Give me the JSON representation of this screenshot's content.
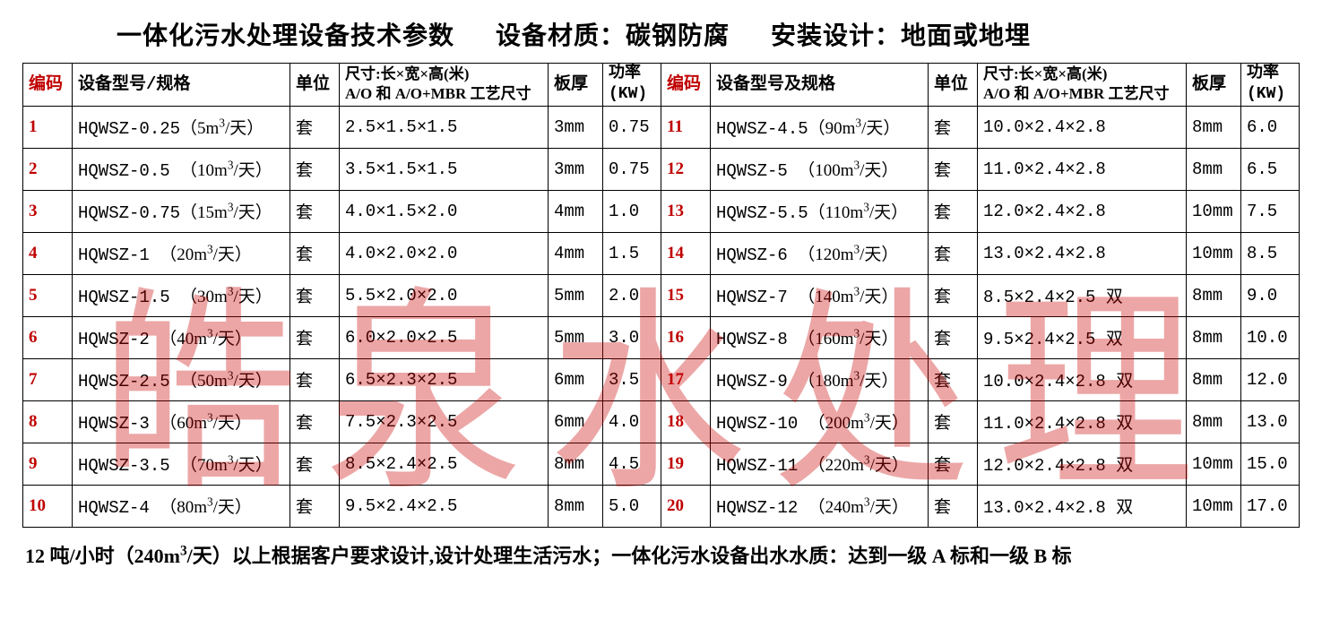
{
  "title_parts": [
    "一体化污水处理设备技术参数",
    "设备材质：碳钢防腐",
    "安装设计：地面或地埋"
  ],
  "watermark": "皓泉水处理",
  "headers": {
    "code": "编码",
    "model1": "设备型号/规格",
    "model2": "设备型号及规格",
    "unit": "单位",
    "dim_l1": "尺寸:长×宽×高(米)",
    "dim_l2": "A/O 和 A/O+MBR 工艺尺寸",
    "thick": "板厚",
    "pwr_l1": "功率",
    "pwr_l2": "(KW)"
  },
  "colors": {
    "code": "#c00000",
    "border": "#000000",
    "text": "#000000",
    "watermark": "rgba(200,0,0,0.35)",
    "bg": "#ffffff"
  },
  "font_sizes": {
    "header": 28,
    "cell": 19,
    "footer": 22,
    "watermark": 220
  },
  "rows_left": [
    {
      "code": "1",
      "model": "HQWSZ-0.25",
      "cap": "5",
      "unit": "套",
      "dim": "2.5×1.5×1.5",
      "thick": "3mm",
      "pwr": "0.75"
    },
    {
      "code": "2",
      "model": "HQWSZ-0.5",
      "cap": "10",
      "unit": "套",
      "dim": "3.5×1.5×1.5",
      "thick": "3mm",
      "pwr": "0.75"
    },
    {
      "code": "3",
      "model": "HQWSZ-0.75",
      "cap": "15",
      "unit": "套",
      "dim": "4.0×1.5×2.0",
      "thick": "4mm",
      "pwr": "1.0"
    },
    {
      "code": "4",
      "model": "HQWSZ-1",
      "cap": "20",
      "unit": "套",
      "dim": "4.0×2.0×2.0",
      "thick": "4mm",
      "pwr": "1.5"
    },
    {
      "code": "5",
      "model": "HQWSZ-1.5",
      "cap": "30",
      "unit": "套",
      "dim": "5.5×2.0×2.0",
      "thick": "5mm",
      "pwr": "2.0"
    },
    {
      "code": "6",
      "model": "HQWSZ-2",
      "cap": "40",
      "unit": "套",
      "dim": "6.0×2.0×2.5",
      "thick": "5mm",
      "pwr": "3.0"
    },
    {
      "code": "7",
      "model": "HQWSZ-2.5",
      "cap": "50",
      "unit": "套",
      "dim": "6.5×2.3×2.5",
      "thick": "6mm",
      "pwr": "3.5"
    },
    {
      "code": "8",
      "model": "HQWSZ-3",
      "cap": "60",
      "unit": "套",
      "dim": "7.5×2.3×2.5",
      "thick": "6mm",
      "pwr": "4.0"
    },
    {
      "code": "9",
      "model": "HQWSZ-3.5",
      "cap": "70",
      "unit": "套",
      "dim": "8.5×2.4×2.5",
      "thick": "8mm",
      "pwr": "4.5"
    },
    {
      "code": "10",
      "model": "HQWSZ-4",
      "cap": "80",
      "unit": "套",
      "dim": "9.5×2.4×2.5",
      "thick": "8mm",
      "pwr": "5.0"
    }
  ],
  "rows_right": [
    {
      "code": "11",
      "model": "HQWSZ-4.5",
      "cap": "90",
      "unit": "套",
      "dim": "10.0×2.4×2.8",
      "suffix": "",
      "thick": "8mm",
      "pwr": "6.0"
    },
    {
      "code": "12",
      "model": "HQWSZ-5",
      "cap": "100",
      "unit": "套",
      "dim": "11.0×2.4×2.8",
      "suffix": "",
      "thick": "8mm",
      "pwr": "6.5"
    },
    {
      "code": "13",
      "model": "HQWSZ-5.5",
      "cap": "110",
      "unit": "套",
      "dim": "12.0×2.4×2.8",
      "suffix": "",
      "thick": "10mm",
      "pwr": "7.5"
    },
    {
      "code": "14",
      "model": "HQWSZ-6",
      "cap": "120",
      "unit": "套",
      "dim": "13.0×2.4×2.8",
      "suffix": "",
      "thick": "10mm",
      "pwr": "8.5"
    },
    {
      "code": "15",
      "model": "HQWSZ-7",
      "cap": "140",
      "unit": "套",
      "dim": "8.5×2.4×2.5",
      "suffix": "双",
      "thick": "8mm",
      "pwr": "9.0"
    },
    {
      "code": "16",
      "model": "HQWSZ-8",
      "cap": "160",
      "unit": "套",
      "dim": "9.5×2.4×2.5",
      "suffix": "双",
      "thick": "8mm",
      "pwr": "10.0"
    },
    {
      "code": "17",
      "model": "HQWSZ-9",
      "cap": "180",
      "unit": "套",
      "dim": "10.0×2.4×2.8",
      "suffix": "双",
      "thick": "8mm",
      "pwr": "12.0"
    },
    {
      "code": "18",
      "model": "HQWSZ-10",
      "cap": "200",
      "unit": "套",
      "dim": "11.0×2.4×2.8",
      "suffix": "双",
      "thick": "8mm",
      "pwr": "13.0"
    },
    {
      "code": "19",
      "model": "HQWSZ-11",
      "cap": "220",
      "unit": "套",
      "dim": "12.0×2.4×2.8",
      "suffix": "双",
      "thick": "10mm",
      "pwr": "15.0"
    },
    {
      "code": "20",
      "model": "HQWSZ-12",
      "cap": "240",
      "unit": "套",
      "dim": "13.0×2.4×2.8",
      "suffix": "双",
      "thick": "10mm",
      "pwr": "17.0"
    }
  ],
  "footer_prefix": "12 吨/小时（240m",
  "footer_suffix": "/天）以上根据客户要求设计,设计处理生活污水；一体化污水设备出水水质：达到一级 A 标和一级 B 标"
}
